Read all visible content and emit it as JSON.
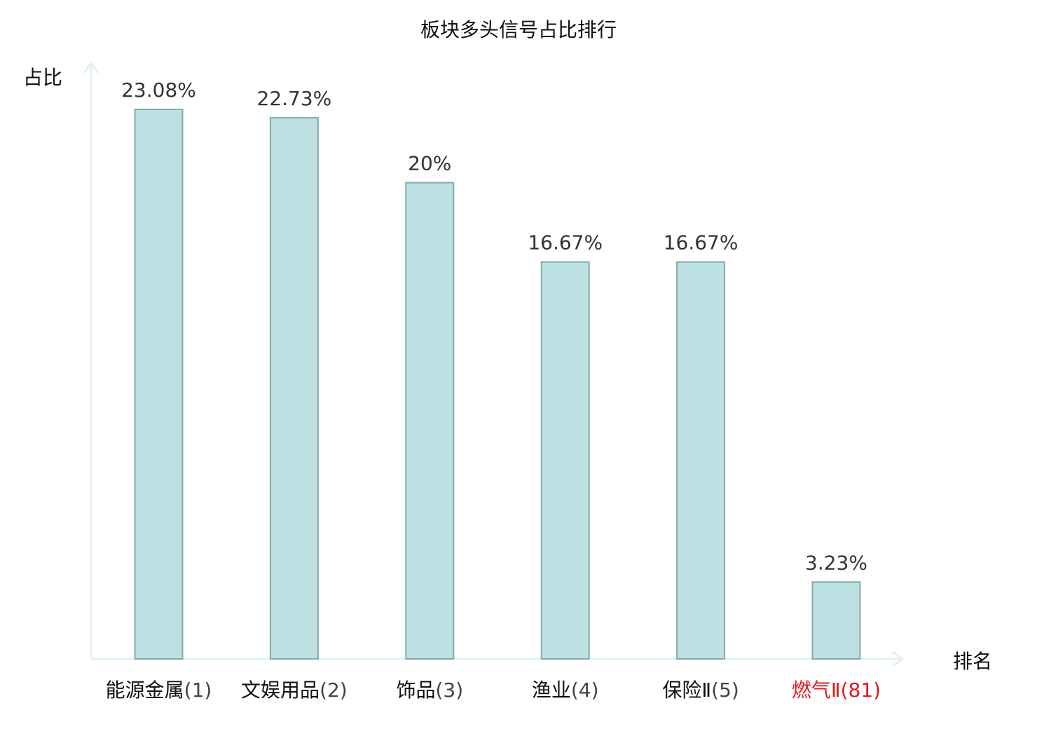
{
  "chart_data": {
    "type": "bar",
    "title": "板块多头信号占比排行",
    "ylabel": "占比",
    "xlabel": "排名",
    "ylim": [
      0,
      25
    ],
    "grid": false,
    "categories": [
      {
        "name": "能源金属",
        "rank": "(1)",
        "highlight": false
      },
      {
        "name": "文娱用品",
        "rank": "(2)",
        "highlight": false
      },
      {
        "name": "饰品",
        "rank": "(3)",
        "highlight": false
      },
      {
        "name": "渔业",
        "rank": "(4)",
        "highlight": false
      },
      {
        "name": "保险Ⅱ",
        "rank": "(5)",
        "highlight": false
      },
      {
        "name": "燃气Ⅱ",
        "rank": "(81)",
        "highlight": true
      }
    ],
    "values": [
      23.08,
      22.73,
      20,
      16.67,
      16.67,
      3.23
    ],
    "value_labels": [
      "23.08%",
      "22.73%",
      "20%",
      "16.67%",
      "16.67%",
      "3.23%"
    ]
  },
  "colors": {
    "bar_fill": "#bde0e3",
    "bar_stroke": "#88a9ab",
    "axis": "#e0f2f0",
    "category_text": "#111111",
    "rank_text": "#444444",
    "highlight_text": "#e0191e"
  }
}
